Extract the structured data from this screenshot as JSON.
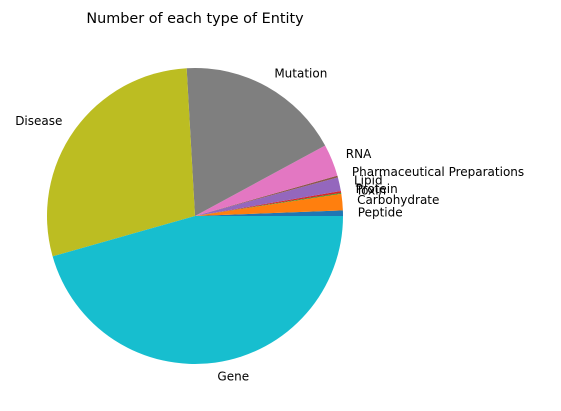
{
  "chart_data": {
    "type": "pie",
    "title": "Number of each type of Entity",
    "start_angle_deg": 0,
    "direction": "counterclockwise",
    "legend": "none",
    "slices": [
      {
        "label": "Peptide",
        "value": 0.6,
        "color": "#1f77b4"
      },
      {
        "label": "Carbohydrate",
        "value": 1.8,
        "color": "#ff7f0e"
      },
      {
        "label": "Toxin",
        "value": 0.1,
        "color": "#2ca02c"
      },
      {
        "label": "Protein",
        "value": 0.2,
        "color": "#d62728"
      },
      {
        "label": "Lipid",
        "value": 1.5,
        "color": "#9467bd"
      },
      {
        "label": "Pharmaceutical Preparations",
        "value": 0.2,
        "color": "#8c564b"
      },
      {
        "label": "RNA",
        "value": 3.5,
        "color": "#e377c2"
      },
      {
        "label": "Mutation",
        "value": 18.0,
        "color": "#7f7f7f"
      },
      {
        "label": "Disease",
        "value": 28.5,
        "color": "#bcbd22"
      },
      {
        "label": "Gene",
        "value": 45.6,
        "color": "#17becf"
      }
    ]
  }
}
